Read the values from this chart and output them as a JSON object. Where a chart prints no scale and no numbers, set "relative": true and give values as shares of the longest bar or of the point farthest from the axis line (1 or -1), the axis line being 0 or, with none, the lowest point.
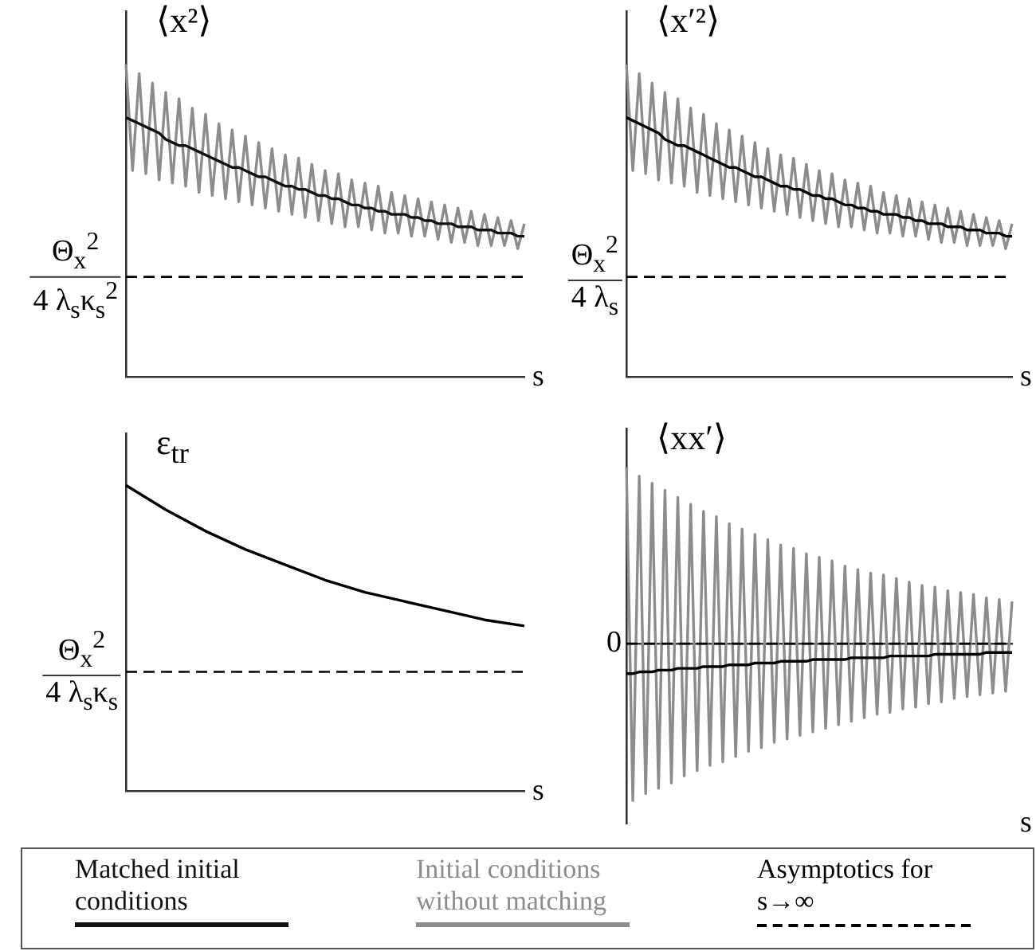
{
  "chart_data": [
    {
      "type": "line",
      "title": "⟨x²⟩",
      "xlabel": "s",
      "relative": true,
      "grid": false,
      "marker": "none",
      "legend": "bottom",
      "annotations": [
        "Asymptotics for s→∞"
      ],
      "categories": [
        null,
        null,
        null,
        null,
        null,
        null,
        null,
        null,
        null,
        null,
        null,
        null,
        null,
        null,
        null,
        null,
        null,
        null,
        null,
        null,
        null,
        null,
        null,
        null,
        null,
        null,
        null,
        null,
        null,
        null,
        null,
        null,
        null,
        null,
        null,
        null,
        null,
        null,
        null,
        null,
        null,
        null,
        null,
        null,
        null,
        null,
        null,
        null,
        null,
        null,
        null,
        null,
        null,
        null,
        null,
        null,
        null,
        null,
        null,
        null,
        null
      ],
      "series": [
        {
          "name": "Matched initial conditions",
          "color": "#111111",
          "values": [
            0.83,
            0.82,
            0.81,
            0.8,
            0.79,
            0.78,
            0.76,
            0.75,
            0.74,
            0.74,
            0.73,
            0.72,
            0.71,
            0.7,
            0.69,
            0.68,
            0.67,
            0.67,
            0.66,
            0.65,
            0.64,
            0.64,
            0.63,
            0.62,
            0.61,
            0.61,
            0.6,
            0.6,
            0.59,
            0.58,
            0.58,
            0.57,
            0.57,
            0.56,
            0.55,
            0.55,
            0.54,
            0.54,
            0.53,
            0.53,
            0.52,
            0.52,
            0.52,
            0.51,
            0.51,
            0.5,
            0.5,
            0.49,
            0.49,
            0.49,
            0.48,
            0.48,
            0.48,
            0.47,
            0.47,
            0.47,
            0.46,
            0.46,
            0.46,
            0.45,
            0.45
          ]
        },
        {
          "name": "Initial conditions without matching",
          "color": "#8c8c8c",
          "values": [
            1.0,
            0.66,
            0.97,
            0.65,
            0.94,
            0.63,
            0.91,
            0.62,
            0.89,
            0.61,
            0.86,
            0.59,
            0.84,
            0.58,
            0.81,
            0.57,
            0.79,
            0.56,
            0.77,
            0.55,
            0.75,
            0.54,
            0.73,
            0.53,
            0.71,
            0.52,
            0.7,
            0.51,
            0.68,
            0.5,
            0.66,
            0.49,
            0.65,
            0.48,
            0.63,
            0.48,
            0.62,
            0.47,
            0.61,
            0.46,
            0.59,
            0.46,
            0.58,
            0.45,
            0.57,
            0.45,
            0.56,
            0.44,
            0.55,
            0.43,
            0.54,
            0.43,
            0.53,
            0.42,
            0.52,
            0.42,
            0.51,
            0.42,
            0.5,
            0.41,
            0.49
          ]
        }
      ],
      "ref_lines": [
        {
          "axis": "y",
          "value": 0.32,
          "label": "Θ$_{x}$$^{2}$\n4 λ$_{s}$κ$_{s}$$^{2}$",
          "color": "#000000",
          "line_style": "dashed"
        }
      ]
    },
    {
      "type": "line",
      "title": "⟨x′²⟩",
      "xlabel": "s",
      "relative": true,
      "grid": false,
      "marker": "none",
      "categories": [
        null,
        null,
        null,
        null,
        null,
        null,
        null,
        null,
        null,
        null,
        null,
        null,
        null,
        null,
        null,
        null,
        null,
        null,
        null,
        null,
        null,
        null,
        null,
        null,
        null,
        null,
        null,
        null,
        null,
        null,
        null,
        null,
        null,
        null,
        null,
        null,
        null,
        null,
        null,
        null,
        null,
        null,
        null,
        null,
        null,
        null,
        null,
        null,
        null,
        null,
        null,
        null,
        null,
        null,
        null,
        null,
        null,
        null,
        null,
        null,
        null
      ],
      "series": [
        {
          "color": "#000000",
          "values": [
            0.83,
            0.82,
            0.81,
            0.8,
            0.79,
            0.78,
            0.76,
            0.75,
            0.74,
            0.74,
            0.73,
            0.72,
            0.71,
            0.7,
            0.69,
            0.68,
            0.67,
            0.67,
            0.66,
            0.65,
            0.64,
            0.64,
            0.63,
            0.62,
            0.61,
            0.61,
            0.6,
            0.6,
            0.59,
            0.58,
            0.58,
            0.57,
            0.57,
            0.56,
            0.55,
            0.55,
            0.54,
            0.54,
            0.53,
            0.53,
            0.52,
            0.52,
            0.52,
            0.51,
            0.51,
            0.5,
            0.5,
            0.49,
            0.49,
            0.49,
            0.48,
            0.48,
            0.48,
            0.47,
            0.47,
            0.47,
            0.46,
            0.46,
            0.46,
            0.45,
            0.45
          ]
        },
        {
          "color": "#8c8c8c",
          "values": [
            1.0,
            0.66,
            0.97,
            0.65,
            0.94,
            0.63,
            0.91,
            0.62,
            0.89,
            0.61,
            0.86,
            0.59,
            0.84,
            0.58,
            0.81,
            0.57,
            0.79,
            0.56,
            0.77,
            0.55,
            0.75,
            0.54,
            0.73,
            0.53,
            0.71,
            0.52,
            0.7,
            0.51,
            0.68,
            0.5,
            0.66,
            0.49,
            0.65,
            0.48,
            0.63,
            0.48,
            0.62,
            0.47,
            0.61,
            0.46,
            0.59,
            0.46,
            0.58,
            0.45,
            0.57,
            0.45,
            0.56,
            0.44,
            0.55,
            0.43,
            0.54,
            0.43,
            0.53,
            0.42,
            0.52,
            0.42,
            0.51,
            0.42,
            0.5,
            0.41,
            0.49
          ]
        }
      ],
      "ref_lines": [
        {
          "axis": "y",
          "value": 0.32,
          "label": "Θ$_{x}$$^{2}$\n4 λ$_{s}$",
          "color": "#000000",
          "line_style": "dashed"
        }
      ]
    },
    {
      "type": "line",
      "title": "ε$_{tr}$",
      "xlabel": "s",
      "relative": true,
      "grid": false,
      "marker": "none",
      "categories": [
        null,
        null,
        null,
        null,
        null,
        null,
        null,
        null,
        null,
        null,
        null
      ],
      "series": [
        {
          "color": "#000000",
          "values": [
            1.0,
            0.92,
            0.85,
            0.79,
            0.74,
            0.69,
            0.65,
            0.62,
            0.59,
            0.56,
            0.54
          ]
        }
      ],
      "ref_lines": [
        {
          "axis": "y",
          "value": 0.39,
          "label": "Θ$_{x}$$^{2}$\n4 λ$_{s}$κ$_{s}$",
          "color": "#000000",
          "line_style": "dashed"
        }
      ]
    },
    {
      "type": "line",
      "title": "⟨xx′⟩",
      "xlabel": "s",
      "relative": true,
      "grid": false,
      "marker": "none",
      "categories": [
        null,
        null,
        null,
        null,
        null,
        null,
        null,
        null,
        null,
        null,
        null,
        null,
        null,
        null,
        null,
        null,
        null,
        null,
        null,
        null,
        null,
        null,
        null,
        null,
        null,
        null,
        null,
        null,
        null,
        null,
        null,
        null,
        null,
        null,
        null,
        null,
        null,
        null,
        null,
        null,
        null,
        null,
        null,
        null,
        null,
        null,
        null,
        null,
        null,
        null,
        null,
        null,
        null,
        null,
        null,
        null,
        null,
        null,
        null,
        null,
        null
      ],
      "series": [
        {
          "color": "#000000",
          "values": [
            -0.17,
            -0.17,
            -0.16,
            -0.16,
            -0.16,
            -0.15,
            -0.15,
            -0.15,
            -0.14,
            -0.14,
            -0.14,
            -0.14,
            -0.13,
            -0.13,
            -0.13,
            -0.13,
            -0.12,
            -0.12,
            -0.12,
            -0.12,
            -0.11,
            -0.11,
            -0.11,
            -0.11,
            -0.1,
            -0.1,
            -0.1,
            -0.1,
            -0.1,
            -0.09,
            -0.09,
            -0.09,
            -0.09,
            -0.09,
            -0.09,
            -0.08,
            -0.08,
            -0.08,
            -0.08,
            -0.08,
            -0.08,
            -0.07,
            -0.07,
            -0.07,
            -0.07,
            -0.07,
            -0.07,
            -0.07,
            -0.06,
            -0.06,
            -0.06,
            -0.06,
            -0.06,
            -0.06,
            -0.06,
            -0.06,
            -0.05,
            -0.05,
            -0.05,
            -0.05,
            -0.05
          ]
        },
        {
          "color": "#8c8c8c",
          "values": [
            1.0,
            -0.89,
            0.95,
            -0.85,
            0.91,
            -0.82,
            0.87,
            -0.79,
            0.83,
            -0.75,
            0.79,
            -0.72,
            0.75,
            -0.69,
            0.72,
            -0.67,
            0.68,
            -0.64,
            0.65,
            -0.61,
            0.62,
            -0.59,
            0.59,
            -0.56,
            0.56,
            -0.54,
            0.54,
            -0.52,
            0.51,
            -0.5,
            0.49,
            -0.48,
            0.47,
            -0.46,
            0.44,
            -0.44,
            0.42,
            -0.42,
            0.4,
            -0.4,
            0.39,
            -0.39,
            0.37,
            -0.37,
            0.35,
            -0.36,
            0.33,
            -0.34,
            0.32,
            -0.33,
            0.3,
            -0.31,
            0.29,
            -0.3,
            0.28,
            -0.29,
            0.26,
            -0.28,
            0.25,
            -0.27,
            0.24
          ]
        }
      ],
      "ref_lines": [
        {
          "axis": "y",
          "value": 0,
          "label": "0",
          "color": "#000000",
          "line_style": "dashed"
        }
      ]
    }
  ]
}
